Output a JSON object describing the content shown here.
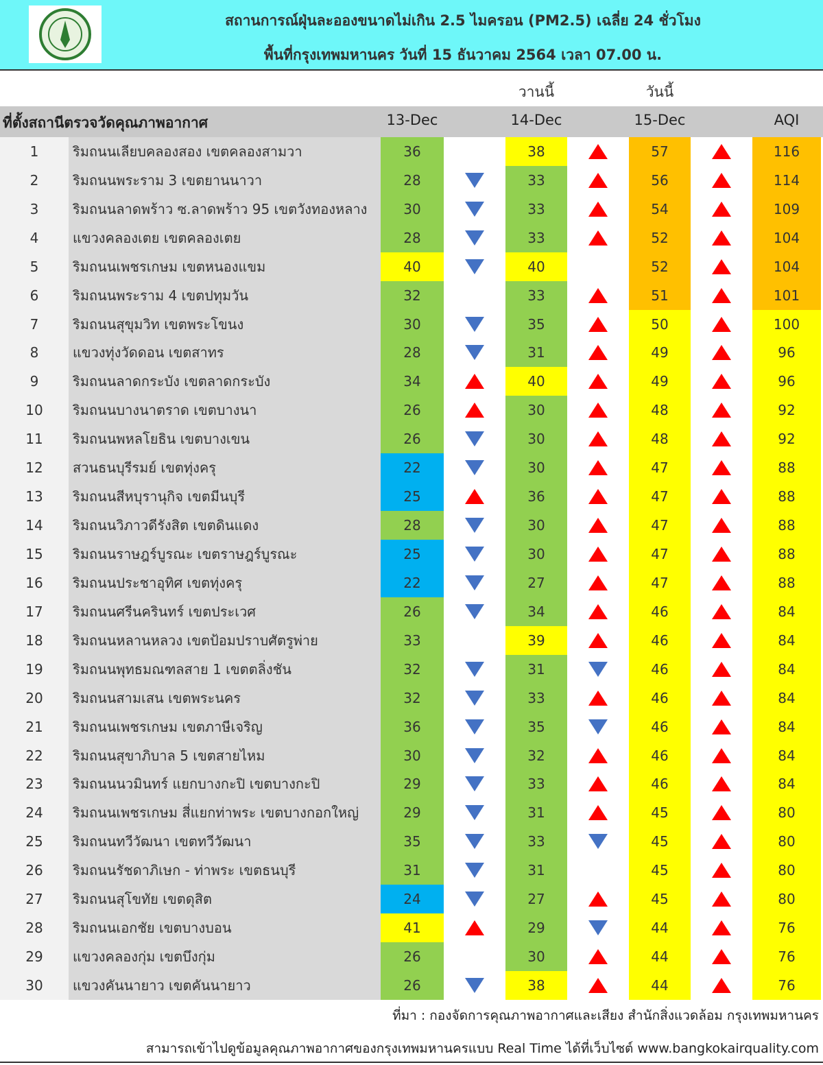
{
  "header": {
    "title_line1": "สถานการณ์ฝุ่นละอองขนาดไม่เกิน 2.5 ไมครอน (PM2.5) เฉลี่ย 24 ชั่วโมง",
    "title_line2": "พื้นที่กรุงเทพมหานคร วันที่ 15 ธันวาคม 2564 เวลา 07.00 น."
  },
  "table": {
    "day_labels": {
      "yesterday": "วานนี้",
      "today": "วันนี้"
    },
    "columns": [
      "ที่ตั้งสถานีตรวจวัดคุณภาพอากาศ",
      "13-Dec",
      "14-Dec",
      "15-Dec",
      "AQI"
    ],
    "rows": [
      {
        "no": 1,
        "station": "ริมถนนเลียบคลองสอง เขตคลองสามวา",
        "values": [
          36,
          38,
          57,
          116
        ],
        "colors": [
          "#92d050",
          "#ffff00",
          "#ffc000",
          "#ffc000"
        ],
        "trends": [
          null,
          "up",
          "up"
        ]
      },
      {
        "no": 2,
        "station": "ริมถนนพระราม 3 เขตยานนาวา",
        "values": [
          28,
          33,
          56,
          114
        ],
        "colors": [
          "#92d050",
          "#92d050",
          "#ffc000",
          "#ffc000"
        ],
        "trends": [
          "down",
          "up",
          "up"
        ]
      },
      {
        "no": 3,
        "station": "ริมถนนลาดพร้าว ซ.ลาดพร้าว 95 เขตวังทองหลาง",
        "values": [
          30,
          33,
          54,
          109
        ],
        "colors": [
          "#92d050",
          "#92d050",
          "#ffc000",
          "#ffc000"
        ],
        "trends": [
          "down",
          "up",
          "up"
        ]
      },
      {
        "no": 4,
        "station": "แขวงคลองเตย เขตคลองเตย",
        "values": [
          28,
          33,
          52,
          104
        ],
        "colors": [
          "#92d050",
          "#92d050",
          "#ffc000",
          "#ffc000"
        ],
        "trends": [
          "down",
          "up",
          "up"
        ]
      },
      {
        "no": 5,
        "station": "ริมถนนเพชรเกษม เขตหนองแขม",
        "values": [
          40,
          40,
          52,
          104
        ],
        "colors": [
          "#ffff00",
          "#ffff00",
          "#ffc000",
          "#ffc000"
        ],
        "trends": [
          "down",
          null,
          "up"
        ]
      },
      {
        "no": 6,
        "station": "ริมถนนพระราม 4 เขตปทุมวัน",
        "values": [
          32,
          33,
          51,
          101
        ],
        "colors": [
          "#92d050",
          "#92d050",
          "#ffc000",
          "#ffc000"
        ],
        "trends": [
          null,
          "up",
          "up"
        ]
      },
      {
        "no": 7,
        "station": "ริมถนนสุขุมวิท เขตพระโขนง",
        "values": [
          30,
          35,
          50,
          100
        ],
        "colors": [
          "#92d050",
          "#92d050",
          "#ffff00",
          "#ffff00"
        ],
        "trends": [
          "down",
          "up",
          "up"
        ]
      },
      {
        "no": 8,
        "station": "แขวงทุ่งวัดดอน เขตสาทร",
        "values": [
          28,
          31,
          49,
          96
        ],
        "colors": [
          "#92d050",
          "#92d050",
          "#ffff00",
          "#ffff00"
        ],
        "trends": [
          "down",
          "up",
          "up"
        ]
      },
      {
        "no": 9,
        "station": "ริมถนนลาดกระบัง เขตลาดกระบัง",
        "values": [
          34,
          40,
          49,
          96
        ],
        "colors": [
          "#92d050",
          "#ffff00",
          "#ffff00",
          "#ffff00"
        ],
        "trends": [
          "up",
          "up",
          "up"
        ]
      },
      {
        "no": 10,
        "station": "ริมถนนบางนาตราด เขตบางนา",
        "values": [
          26,
          30,
          48,
          92
        ],
        "colors": [
          "#92d050",
          "#92d050",
          "#ffff00",
          "#ffff00"
        ],
        "trends": [
          "up",
          "up",
          "up"
        ]
      },
      {
        "no": 11,
        "station": "ริมถนนพหลโยธิน เขตบางเขน",
        "values": [
          26,
          30,
          48,
          92
        ],
        "colors": [
          "#92d050",
          "#92d050",
          "#ffff00",
          "#ffff00"
        ],
        "trends": [
          "down",
          "up",
          "up"
        ]
      },
      {
        "no": 12,
        "station": "สวนธนบุรีรมย์ เขตทุ่งครุ",
        "values": [
          22,
          30,
          47,
          88
        ],
        "colors": [
          "#00b0f0",
          "#92d050",
          "#ffff00",
          "#ffff00"
        ],
        "trends": [
          "down",
          "up",
          "up"
        ]
      },
      {
        "no": 13,
        "station": "ริมถนนสีหบุรานุกิจ เขตมีนบุรี",
        "values": [
          25,
          36,
          47,
          88
        ],
        "colors": [
          "#00b0f0",
          "#92d050",
          "#ffff00",
          "#ffff00"
        ],
        "trends": [
          "up",
          "up",
          "up"
        ]
      },
      {
        "no": 14,
        "station": "ริมถนนวิภาวดีรังสิต เขตดินแดง",
        "values": [
          28,
          30,
          47,
          88
        ],
        "colors": [
          "#92d050",
          "#92d050",
          "#ffff00",
          "#ffff00"
        ],
        "trends": [
          "down",
          "up",
          "up"
        ]
      },
      {
        "no": 15,
        "station": "ริมถนนราษฎร์บูรณะ เขตราษฎร์บูรณะ",
        "values": [
          25,
          30,
          47,
          88
        ],
        "colors": [
          "#00b0f0",
          "#92d050",
          "#ffff00",
          "#ffff00"
        ],
        "trends": [
          "down",
          "up",
          "up"
        ]
      },
      {
        "no": 16,
        "station": "ริมถนนประชาอุทิศ เขตทุ่งครุ",
        "values": [
          22,
          27,
          47,
          88
        ],
        "colors": [
          "#00b0f0",
          "#92d050",
          "#ffff00",
          "#ffff00"
        ],
        "trends": [
          "down",
          "up",
          "up"
        ]
      },
      {
        "no": 17,
        "station": "ริมถนนศรีนครินทร์ เขตประเวศ",
        "values": [
          26,
          34,
          46,
          84
        ],
        "colors": [
          "#92d050",
          "#92d050",
          "#ffff00",
          "#ffff00"
        ],
        "trends": [
          "down",
          "up",
          "up"
        ]
      },
      {
        "no": 18,
        "station": "ริมถนนหลานหลวง เขตป้อมปราบศัตรูพ่าย",
        "values": [
          33,
          39,
          46,
          84
        ],
        "colors": [
          "#92d050",
          "#ffff00",
          "#ffff00",
          "#ffff00"
        ],
        "trends": [
          null,
          "up",
          "up"
        ]
      },
      {
        "no": 19,
        "station": "ริมถนนพุทธมณฑลสาย 1 เขตตลิ่งชัน",
        "values": [
          32,
          31,
          46,
          84
        ],
        "colors": [
          "#92d050",
          "#92d050",
          "#ffff00",
          "#ffff00"
        ],
        "trends": [
          "down",
          "down",
          "up"
        ]
      },
      {
        "no": 20,
        "station": "ริมถนนสามเสน เขตพระนคร",
        "values": [
          32,
          33,
          46,
          84
        ],
        "colors": [
          "#92d050",
          "#92d050",
          "#ffff00",
          "#ffff00"
        ],
        "trends": [
          "down",
          "up",
          "up"
        ]
      },
      {
        "no": 21,
        "station": "ริมถนนเพชรเกษม เขตภาษีเจริญ",
        "values": [
          36,
          35,
          46,
          84
        ],
        "colors": [
          "#92d050",
          "#92d050",
          "#ffff00",
          "#ffff00"
        ],
        "trends": [
          "down",
          "down",
          "up"
        ]
      },
      {
        "no": 22,
        "station": "ริมถนนสุขาภิบาล 5 เขตสายไหม",
        "values": [
          30,
          32,
          46,
          84
        ],
        "colors": [
          "#92d050",
          "#92d050",
          "#ffff00",
          "#ffff00"
        ],
        "trends": [
          "down",
          "up",
          "up"
        ]
      },
      {
        "no": 23,
        "station": "ริมถนนนวมินทร์ แยกบางกะปิ เขตบางกะปิ",
        "values": [
          29,
          33,
          46,
          84
        ],
        "colors": [
          "#92d050",
          "#92d050",
          "#ffff00",
          "#ffff00"
        ],
        "trends": [
          "down",
          "up",
          "up"
        ]
      },
      {
        "no": 24,
        "station": "ริมถนนเพชรเกษม สี่แยกท่าพระ เขตบางกอกใหญ่",
        "values": [
          29,
          31,
          45,
          80
        ],
        "colors": [
          "#92d050",
          "#92d050",
          "#ffff00",
          "#ffff00"
        ],
        "trends": [
          "down",
          "up",
          "up"
        ]
      },
      {
        "no": 25,
        "station": "ริมถนนทวีวัฒนา เขตทวีวัฒนา",
        "values": [
          35,
          33,
          45,
          80
        ],
        "colors": [
          "#92d050",
          "#92d050",
          "#ffff00",
          "#ffff00"
        ],
        "trends": [
          "down",
          "down",
          "up"
        ]
      },
      {
        "no": 26,
        "station": "ริมถนนรัชดาภิเษก - ท่าพระ เขตธนบุรี",
        "values": [
          31,
          31,
          45,
          80
        ],
        "colors": [
          "#92d050",
          "#92d050",
          "#ffff00",
          "#ffff00"
        ],
        "trends": [
          "down",
          null,
          "up"
        ]
      },
      {
        "no": 27,
        "station": "ริมถนนสุโขทัย เขตดุสิต",
        "values": [
          24,
          27,
          45,
          80
        ],
        "colors": [
          "#00b0f0",
          "#92d050",
          "#ffff00",
          "#ffff00"
        ],
        "trends": [
          "down",
          "up",
          "up"
        ]
      },
      {
        "no": 28,
        "station": "ริมถนนเอกชัย เขตบางบอน",
        "values": [
          41,
          29,
          44,
          76
        ],
        "colors": [
          "#ffff00",
          "#92d050",
          "#ffff00",
          "#ffff00"
        ],
        "trends": [
          "up",
          "down",
          "up"
        ]
      },
      {
        "no": 29,
        "station": "แขวงคลองกุ่ม เขตบึงกุ่ม",
        "values": [
          26,
          30,
          44,
          76
        ],
        "colors": [
          "#92d050",
          "#92d050",
          "#ffff00",
          "#ffff00"
        ],
        "trends": [
          null,
          "up",
          "up"
        ]
      },
      {
        "no": 30,
        "station": "แขวงคันนายาว เขตคันนายาว",
        "values": [
          26,
          38,
          44,
          76
        ],
        "colors": [
          "#92d050",
          "#ffff00",
          "#ffff00",
          "#ffff00"
        ],
        "trends": [
          "down",
          "up",
          "up"
        ]
      }
    ]
  },
  "footer": {
    "source": "ที่มา : กองจัดการคุณภาพอากาศและเสียง สำนักสิ่งแวดล้อม กรุงเทพมหานคร",
    "website": "สามารถเข้าไปดูข้อมูลคุณภาพอากาศของกรุงเทพมหานครแบบ Real Time ได้ที่เว็บไซต์ www.bangkokairquality.com"
  }
}
